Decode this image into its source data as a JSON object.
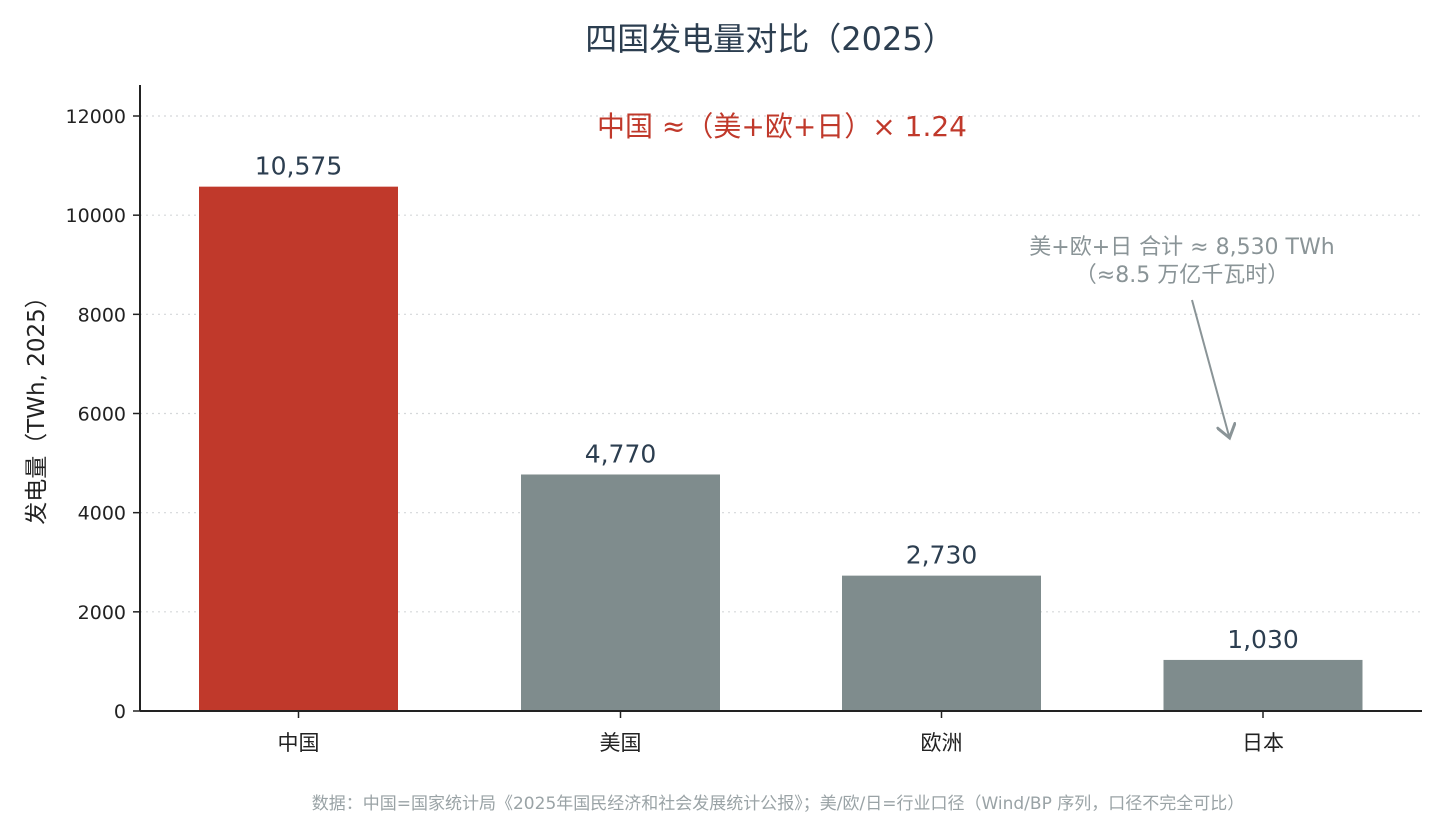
{
  "chart_data": {
    "type": "bar",
    "title": "四国发电量对比（2025）",
    "ylabel": "发电量（TWh, 2025）",
    "xlabel": "",
    "categories": [
      "中国",
      "美国",
      "欧洲",
      "日本"
    ],
    "values": [
      10575,
      4770,
      2730,
      1030
    ],
    "value_labels": [
      "10,575",
      "4,770",
      "2,730",
      "1,030"
    ],
    "ylim": [
      0,
      12600
    ],
    "yticks": [
      0,
      2000,
      4000,
      6000,
      8000,
      10000,
      12000
    ],
    "ytick_labels": [
      "0",
      "2000",
      "4000",
      "6000",
      "8000",
      "10000",
      "12000"
    ],
    "grid": "horizontal dotted",
    "bar_colors": [
      "#c0392b",
      "#7f8c8d",
      "#7f8c8d",
      "#7f8c8d"
    ],
    "annotations": {
      "ratio_text": "中国 ≈（美+欧+日）× 1.24",
      "ratio_color": "#c0392b",
      "sum_line1": "美+欧+日 合计 ≈ 8,530 TWh",
      "sum_line2": "（≈8.5 万亿千瓦时）",
      "sum_color": "#8a9497",
      "arrow_points_to_value": 5400
    },
    "source": "数据：中国=国家统计局《2025年国民经济和社会发展统计公报》；美/欧/日=行业口径（Wind/BP 序列，口径不完全可比）"
  }
}
